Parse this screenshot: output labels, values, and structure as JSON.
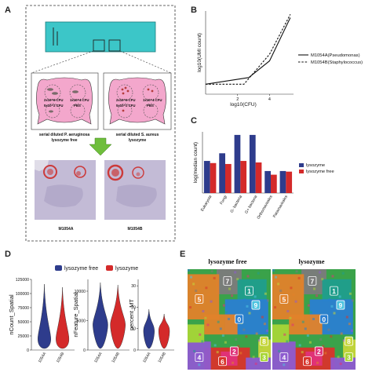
{
  "panels": {
    "a": {
      "label": "A",
      "wells": [
        {
          "label": "2x10^6 CFU",
          "sub": "5x10^2 CFU"
        },
        {
          "label": "1x10^4 CFU",
          "sub": "PBS"
        }
      ],
      "cond_left": {
        "line1": "serial diluted P. aeruginosa",
        "line2": "lysozyme free"
      },
      "cond_right": {
        "line1": "serial diluted S. aureus",
        "line2": "lysozyme"
      },
      "tissue_left": "M1054A",
      "tissue_right": "M1054B"
    },
    "b": {
      "label": "B"
    },
    "c": {
      "label": "C"
    },
    "d": {
      "label": "D"
    },
    "e": {
      "label": "E",
      "title_left": "lysozyme free",
      "title_right": "lysozyme",
      "clusters_left": [
        "5",
        "7",
        "1",
        "0",
        "9",
        "4",
        "6",
        "2",
        "8",
        "3"
      ],
      "clusters_right": [
        "5",
        "7",
        "1",
        "0",
        "9",
        "4",
        "6",
        "2",
        "8",
        "3"
      ]
    }
  },
  "chart_data": [
    {
      "panel": "B",
      "type": "line",
      "xlabel": "log10(CFU)",
      "ylabel": "log10(UMI count)",
      "x_ticks": [
        "2",
        "4"
      ],
      "xlim": [
        0,
        5.5
      ],
      "ylim": [
        0,
        5
      ],
      "series": [
        {
          "name": "M1054A(Pseudomonas)",
          "style": "solid",
          "x": [
            0,
            2.7,
            4.0,
            5.3
          ],
          "y": [
            0.6,
            1.0,
            2.0,
            4.6
          ]
        },
        {
          "name": "M1054B(Staphylococcus)",
          "style": "dashed",
          "x": [
            0,
            2.4,
            4.0,
            5.3
          ],
          "y": [
            0.6,
            0.6,
            2.4,
            4.8
          ]
        }
      ],
      "legend": "right"
    },
    {
      "panel": "C",
      "type": "bar",
      "ylabel": "log(median count)",
      "ylim": [
        0,
        2
      ],
      "categories": [
        "Eukaryota",
        "Fungi",
        "G- bacteria",
        "G+ bacteria",
        "Orthomavirales",
        "Paramavirales"
      ],
      "series": [
        {
          "name": "lysozyme",
          "color": "#2e3c8c",
          "values": [
            1.05,
            1.3,
            1.9,
            1.9,
            0.72,
            0.72
          ]
        },
        {
          "name": "lysozyme free",
          "color": "#d42a2a",
          "values": [
            0.98,
            0.95,
            1.05,
            1.0,
            0.6,
            0.7
          ]
        }
      ],
      "legend": "right"
    },
    {
      "panel": "D",
      "type": "violin",
      "legend": [
        "lysozyme free",
        "lysozyme"
      ],
      "colors": {
        "lysozyme free": "#2e3c8c",
        "lysozyme": "#d42a2a"
      },
      "categories": [
        "1054A",
        "1054B"
      ],
      "subplots": [
        {
          "ylabel": "nCount_Spatial",
          "ticks": [
            "0",
            "25000",
            "50000",
            "75000",
            "100000",
            "125000"
          ],
          "ylim": [
            0,
            125000
          ]
        },
        {
          "ylabel": "nFeature_Spatial",
          "ticks": [
            "0",
            "5000",
            "10000"
          ],
          "ylim": [
            0,
            12000
          ]
        },
        {
          "ylabel": "percent_MT",
          "ticks": [
            "0",
            "10",
            "20",
            "30"
          ],
          "ylim": [
            0,
            33
          ]
        }
      ]
    }
  ]
}
